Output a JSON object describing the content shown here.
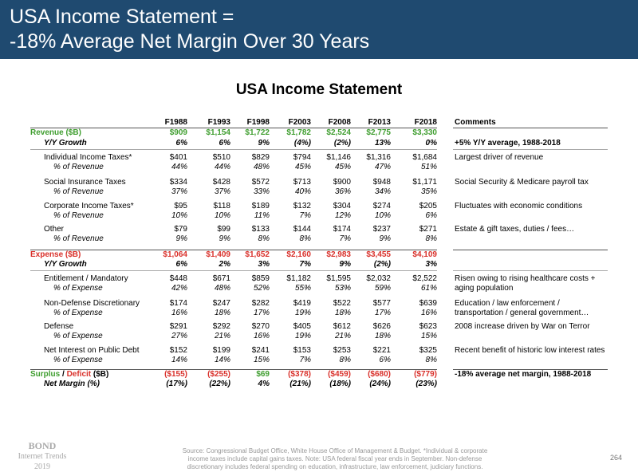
{
  "header": {
    "title_lines": [
      "USA Income Statement =",
      "-18% Average Net Margin Over 30 Years"
    ]
  },
  "subtitle": "USA Income Statement",
  "table": {
    "columns": [
      "F1988",
      "F1993",
      "F1998",
      "F2003",
      "F2008",
      "F2013",
      "F2018"
    ],
    "comments_header": "Comments",
    "sections": [
      {
        "header": {
          "label": "Revenue ($B)",
          "values": [
            "$909",
            "$1,154",
            "$1,722",
            "$1,782",
            "$2,524",
            "$2,775",
            "$3,330"
          ]
        },
        "growth": {
          "label": "Y/Y Growth",
          "values": [
            "6%",
            "6%",
            "9%",
            "(4%)",
            "(2%)",
            "13%",
            "0%"
          ],
          "comment": "+5% Y/Y average, 1988-2018"
        },
        "items": [
          {
            "label": "Individual Income Taxes*",
            "values": [
              "$401",
              "$510",
              "$829",
              "$794",
              "$1,146",
              "$1,316",
              "$1,684"
            ],
            "share_label": "% of Revenue",
            "shares": [
              "44%",
              "44%",
              "48%",
              "45%",
              "45%",
              "47%",
              "51%"
            ],
            "comment": [
              "Largest driver of revenue"
            ]
          },
          {
            "label": "Social Insurance Taxes",
            "values": [
              "$334",
              "$428",
              "$572",
              "$713",
              "$900",
              "$948",
              "$1,171"
            ],
            "share_label": "% of Revenue",
            "shares": [
              "37%",
              "37%",
              "33%",
              "40%",
              "36%",
              "34%",
              "35%"
            ],
            "comment": [
              "Social Security & Medicare payroll tax"
            ]
          },
          {
            "label": "Corporate Income Taxes*",
            "values": [
              "$95",
              "$118",
              "$189",
              "$132",
              "$304",
              "$274",
              "$205"
            ],
            "share_label": "% of Revenue",
            "shares": [
              "10%",
              "10%",
              "11%",
              "7%",
              "12%",
              "10%",
              "6%"
            ],
            "comment": [
              "Fluctuates with economic conditions"
            ]
          },
          {
            "label": "Other",
            "values": [
              "$79",
              "$99",
              "$133",
              "$144",
              "$174",
              "$237",
              "$271"
            ],
            "share_label": "% of Revenue",
            "shares": [
              "9%",
              "9%",
              "8%",
              "8%",
              "7%",
              "9%",
              "8%"
            ],
            "comment": [
              "Estate & gift taxes, duties / fees…"
            ]
          }
        ]
      },
      {
        "header": {
          "label": "Expense ($B)",
          "values": [
            "$1,064",
            "$1,409",
            "$1,652",
            "$2,160",
            "$2,983",
            "$3,455",
            "$4,109"
          ]
        },
        "growth": {
          "label": "Y/Y Growth",
          "values": [
            "6%",
            "2%",
            "3%",
            "7%",
            "9%",
            "(2%)",
            "3%"
          ]
        },
        "items": [
          {
            "label": "Entitlement / Mandatory",
            "values": [
              "$448",
              "$671",
              "$859",
              "$1,182",
              "$1,595",
              "$2,032",
              "$2,522"
            ],
            "share_label": "% of Expense",
            "shares": [
              "42%",
              "48%",
              "52%",
              "55%",
              "53%",
              "59%",
              "61%"
            ],
            "comment": [
              "Risen owing to rising healthcare costs +",
              "aging population"
            ]
          },
          {
            "label": "Non-Defense Discretionary",
            "values": [
              "$174",
              "$247",
              "$282",
              "$419",
              "$522",
              "$577",
              "$639"
            ],
            "share_label": "% of Expense",
            "shares": [
              "16%",
              "18%",
              "17%",
              "19%",
              "18%",
              "17%",
              "16%"
            ],
            "comment": [
              "Education / law enforcement /",
              "transportation / general government…"
            ]
          },
          {
            "label": "Defense",
            "values": [
              "$291",
              "$292",
              "$270",
              "$405",
              "$612",
              "$626",
              "$623"
            ],
            "share_label": "% of Expense",
            "shares": [
              "27%",
              "21%",
              "16%",
              "19%",
              "21%",
              "18%",
              "15%"
            ],
            "comment": [
              "2008 increase driven by War on Terror"
            ]
          },
          {
            "label": "Net Interest on Public Debt",
            "values": [
              "$152",
              "$199",
              "$241",
              "$153",
              "$253",
              "$221",
              "$325"
            ],
            "share_label": "% of Expense",
            "shares": [
              "14%",
              "14%",
              "15%",
              "7%",
              "8%",
              "6%",
              "8%"
            ],
            "comment": [
              "Recent benefit of historic low interest rates"
            ]
          }
        ]
      }
    ],
    "surplus": {
      "label_parts": [
        "Surplus",
        " / ",
        "Deficit",
        " ($B)"
      ],
      "values": [
        "($155)",
        "($255)",
        "$69",
        "($378)",
        "($459)",
        "($680)",
        "($779)"
      ],
      "comment": "-18% average net margin, 1988-2018",
      "margin_label": "Net Margin (%)",
      "margins": [
        "(17%)",
        "(22%)",
        "4%",
        "(21%)",
        "(18%)",
        "(24%)",
        "(23%)"
      ]
    }
  },
  "footer": {
    "logo": [
      "BOND",
      "Internet Trends",
      "2019"
    ],
    "source": "Source: Congressional Budget Office, White House Office of Management & Budget. *Individual & corporate income taxes include capital gains taxes. Note: USA federal fiscal year ends in September. Non-defense discretionary includes federal spending on education, infrastructure, law enforcement, judiciary functions.",
    "page": "264"
  }
}
